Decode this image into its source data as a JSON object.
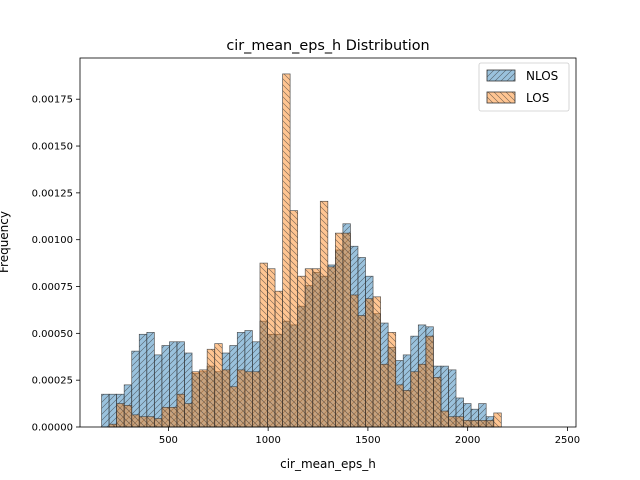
{
  "chart_data": {
    "type": "bar",
    "subtype": "histogram",
    "title": "cir_mean_eps_h Distribution",
    "xlabel": "cir_mean_eps_h",
    "ylabel": "Frequency",
    "xlim": [
      57,
      2543
    ],
    "ylim": [
      0,
      0.00197
    ],
    "grid": false,
    "legend_position": "top-right",
    "xticks": [
      {
        "value": 500,
        "label": "500"
      },
      {
        "value": 1000,
        "label": "1000"
      },
      {
        "value": 1500,
        "label": "1500"
      },
      {
        "value": 2000,
        "label": "2000"
      },
      {
        "value": 2500,
        "label": "2500"
      }
    ],
    "yticks": [
      {
        "value": 0,
        "label": "0.00000"
      },
      {
        "value": 0.00025,
        "label": "0.00025"
      },
      {
        "value": 0.0005,
        "label": "0.00050"
      },
      {
        "value": 0.00075,
        "label": "0.00075"
      },
      {
        "value": 0.001,
        "label": "0.00100"
      },
      {
        "value": 0.00125,
        "label": "0.00125"
      },
      {
        "value": 0.0015,
        "label": "0.00150"
      },
      {
        "value": 0.00175,
        "label": "0.00175"
      }
    ],
    "series": [
      {
        "name": "NLOS",
        "color": "#1f77b4",
        "hatch": "////",
        "bin_start": 165,
        "bin_width": 37.8,
        "values": [
          0.000175,
          0.000175,
          0.000175,
          0.000225,
          0.000405,
          0.000495,
          0.000505,
          0.000385,
          0.000435,
          0.000455,
          0.000455,
          0.000395,
          0.000285,
          0.000295,
          0.000325,
          0.000295,
          0.000395,
          0.000435,
          0.000505,
          0.000515,
          0.000455,
          0.000565,
          0.000495,
          0.000495,
          0.000565,
          0.000545,
          0.000645,
          0.000755,
          0.000825,
          0.000805,
          0.000865,
          0.000945,
          0.001085,
          0.000965,
          0.000905,
          0.000805,
          0.000605,
          0.000555,
          0.000425,
          0.000355,
          0.000385,
          0.000485,
          0.000545,
          0.000535,
          0.000325,
          0.000325,
          0.000305,
          0.000155,
          0.000125,
          9.5e-05,
          0.000125,
          5.5e-05
        ]
      },
      {
        "name": "LOS",
        "color": "#ff7f0e",
        "hatch": "\\\\",
        "bin_start": 203,
        "bin_width": 37.8,
        "values": [
          1.5e-05,
          0.000125,
          0.000115,
          6.5e-05,
          5.5e-05,
          5.5e-05,
          4.5e-05,
          0.000105,
          0.000105,
          0.000175,
          0.000125,
          0.000295,
          0.000305,
          0.000415,
          0.000445,
          0.000305,
          0.000215,
          0.000305,
          0.000295,
          0.000295,
          0.000875,
          0.000845,
          0.000725,
          0.001885,
          0.001155,
          0.000805,
          0.000845,
          0.000845,
          0.001205,
          0.000855,
          0.001035,
          0.001035,
          0.000705,
          0.000595,
          0.000685,
          0.000695,
          0.000335,
          0.000505,
          0.000225,
          0.000195,
          0.000295,
          0.000335,
          0.000485,
          0.000265,
          8.5e-05,
          5.5e-05,
          5.5e-05,
          3.5e-05,
          3.5e-05,
          3.5e-05,
          3.5e-05,
          7.5e-05
        ]
      }
    ]
  }
}
